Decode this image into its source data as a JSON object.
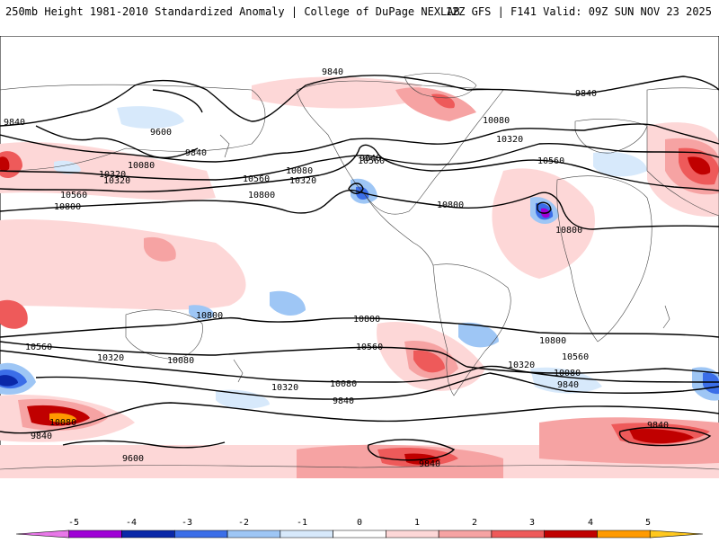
{
  "header": {
    "title_left": "250mb Height 1981-2010 Standardized Anomaly | College of DuPage NEXLAB",
    "title_right": "12Z GFS | F141 Valid: 09Z SUN NOV 23 2025"
  },
  "contour_labels": [
    "9840",
    "9840",
    "9840",
    "9600",
    "9840",
    "10080",
    "10080",
    "10320",
    "10560",
    "10800",
    "10080",
    "10320",
    "10560",
    "10320",
    "10560",
    "10800",
    "10320",
    "10560",
    "10800",
    "10800",
    "10800",
    "10560",
    "10800",
    "10560",
    "10320",
    "10080",
    "9840",
    "10320",
    "10080",
    "9840",
    "10800",
    "10560",
    "10320",
    "10080",
    "9840",
    "9840",
    "10080",
    "9840",
    "9600",
    "9840"
  ],
  "colorbar": {
    "ticks": [
      "-5",
      "-4",
      "-3",
      "-2",
      "-1",
      "0",
      "1",
      "2",
      "3",
      "4",
      "5"
    ],
    "colors": [
      "#e877e8",
      "#9f00d6",
      "#0a28a8",
      "#3b6ee8",
      "#9ec6f5",
      "#d7e9fb",
      "#ffffff",
      "#fdd7d7",
      "#f6a3a3",
      "#ee5a5a",
      "#c00000",
      "#ff9a00",
      "#ffc81e"
    ]
  }
}
